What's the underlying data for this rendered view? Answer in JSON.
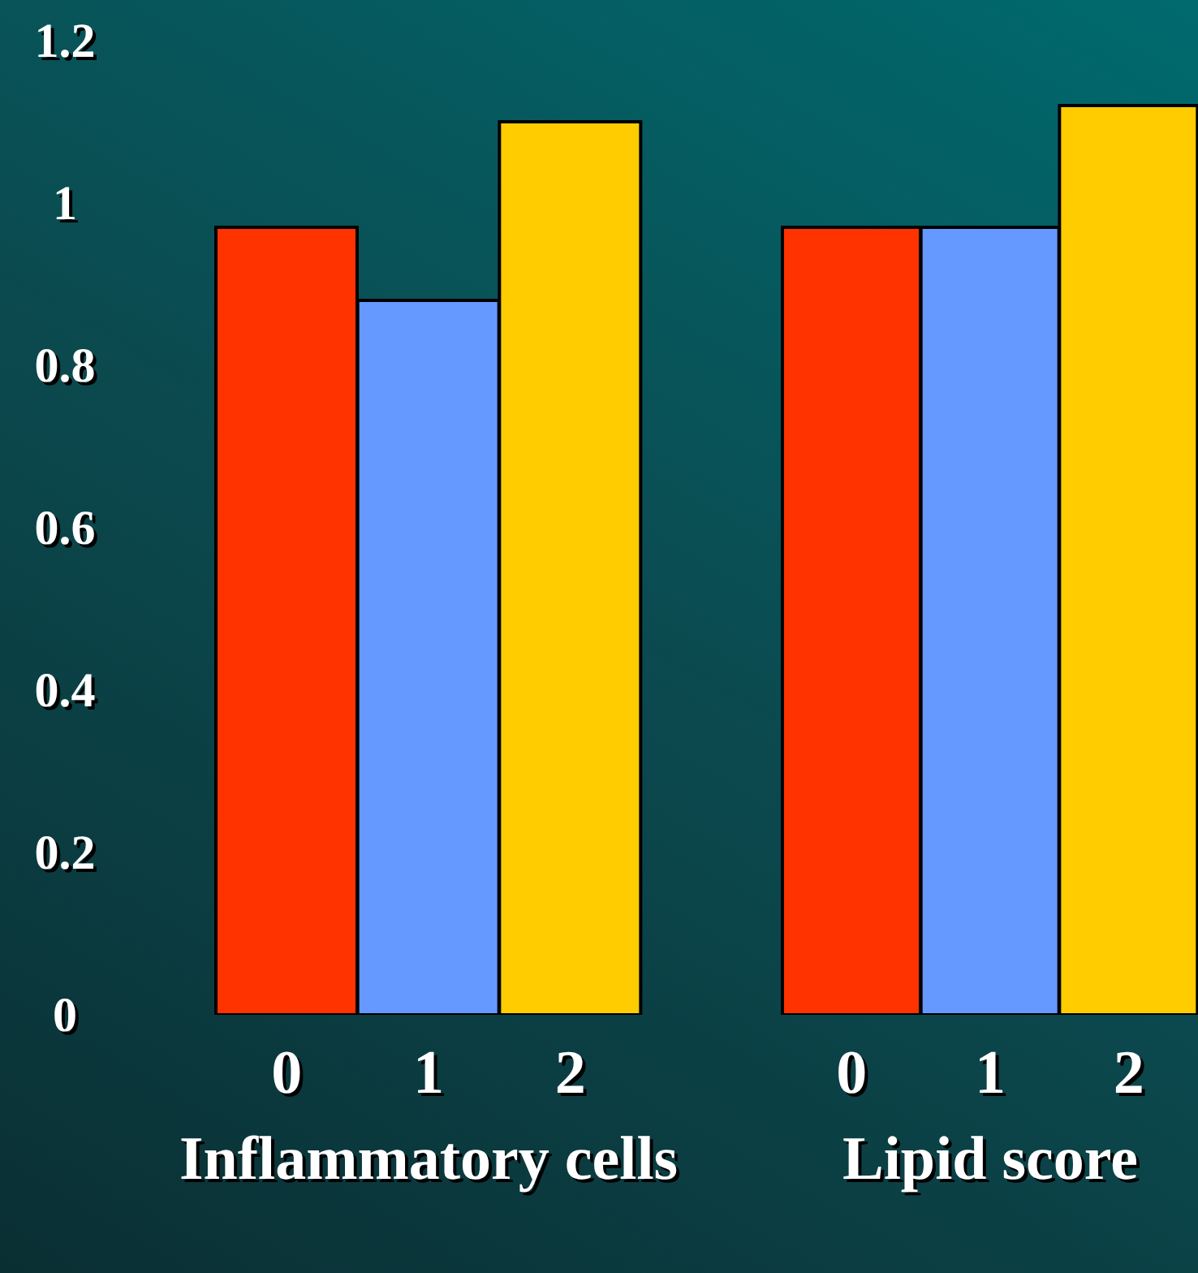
{
  "chart_data": [
    {
      "type": "bar",
      "xlabel": "Inflammatory cells",
      "categories": [
        "0",
        "1",
        "2"
      ],
      "values": [
        0.97,
        0.88,
        1.1
      ],
      "colors": [
        "#ff3300",
        "#6699ff",
        "#ffcc00"
      ],
      "ylim": [
        0,
        1.2
      ],
      "yticks": [
        0,
        0.2,
        0.4,
        0.6,
        0.8,
        1,
        1.2
      ]
    },
    {
      "type": "bar",
      "xlabel": "Lipid score",
      "categories": [
        "0",
        "1",
        "2"
      ],
      "values": [
        0.97,
        0.97,
        1.12
      ],
      "colors": [
        "#ff3300",
        "#6699ff",
        "#ffcc00"
      ],
      "ylim": [
        0,
        1.2
      ],
      "yticks": [
        0,
        0.2,
        0.4,
        0.6,
        0.8,
        1,
        1.2
      ],
      "tick_labels": "x"
    }
  ]
}
